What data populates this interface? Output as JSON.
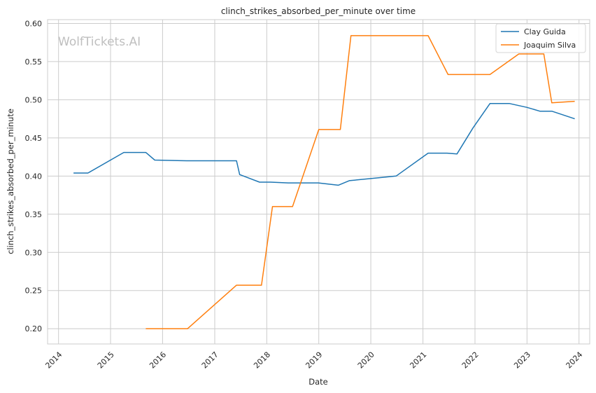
{
  "chart_data": {
    "type": "line",
    "title": "clinch_strikes_absorbed_per_minute over time",
    "xlabel": "Date",
    "ylabel": "clinch_strikes_absorbed_per_minute",
    "watermark": "WolfTickets.AI",
    "x_ticks": [
      "2014",
      "2015",
      "2016",
      "2017",
      "2018",
      "2019",
      "2020",
      "2021",
      "2022",
      "2023",
      "2024"
    ],
    "y_ticks": [
      "0.20",
      "0.25",
      "0.30",
      "0.35",
      "0.40",
      "0.45",
      "0.50",
      "0.55",
      "0.60"
    ],
    "xlim": [
      "2013-10-16",
      "2024-03-16"
    ],
    "ylim": [
      0.18,
      0.605
    ],
    "grid": true,
    "legend_position": "top-right",
    "series": [
      {
        "name": "Clay Guida",
        "color": "#1f77b4",
        "points": [
          [
            "2014-04-16",
            0.404
          ],
          [
            "2014-07-26",
            0.404
          ],
          [
            "2015-04-04",
            0.431
          ],
          [
            "2015-09-05",
            0.431
          ],
          [
            "2015-11-07",
            0.421
          ],
          [
            "2016-06-18",
            0.42
          ],
          [
            "2017-06-03",
            0.42
          ],
          [
            "2017-06-25",
            0.402
          ],
          [
            "2017-11-11",
            0.392
          ],
          [
            "2018-01-27",
            0.392
          ],
          [
            "2018-06-01",
            0.391
          ],
          [
            "2018-12-29",
            0.391
          ],
          [
            "2019-05-18",
            0.388
          ],
          [
            "2019-08-03",
            0.394
          ],
          [
            "2020-06-27",
            0.4
          ],
          [
            "2021-02-06",
            0.43
          ],
          [
            "2021-06-19",
            0.43
          ],
          [
            "2021-08-28",
            0.429
          ],
          [
            "2021-12-18",
            0.463
          ],
          [
            "2022-04-16",
            0.495
          ],
          [
            "2022-09-01",
            0.495
          ],
          [
            "2023-01-01",
            0.49
          ],
          [
            "2023-04-01",
            0.485
          ],
          [
            "2023-06-24",
            0.485
          ],
          [
            "2023-12-02",
            0.475
          ]
        ]
      },
      {
        "name": "Joaquim Silva",
        "color": "#ff7f0e",
        "points": [
          [
            "2015-09-05",
            0.2
          ],
          [
            "2016-06-24",
            0.2
          ],
          [
            "2017-06-03",
            0.257
          ],
          [
            "2017-11-25",
            0.257
          ],
          [
            "2018-02-10",
            0.36
          ],
          [
            "2018-07-01",
            0.36
          ],
          [
            "2019-01-01",
            0.461
          ],
          [
            "2019-06-01",
            0.461
          ],
          [
            "2019-08-15",
            0.584
          ],
          [
            "2021-02-06",
            0.584
          ],
          [
            "2021-06-26",
            0.533
          ],
          [
            "2022-04-16",
            0.533
          ],
          [
            "2022-11-05",
            0.56
          ],
          [
            "2023-04-29",
            0.56
          ],
          [
            "2023-06-24",
            0.496
          ],
          [
            "2023-12-02",
            0.498
          ]
        ]
      }
    ]
  }
}
